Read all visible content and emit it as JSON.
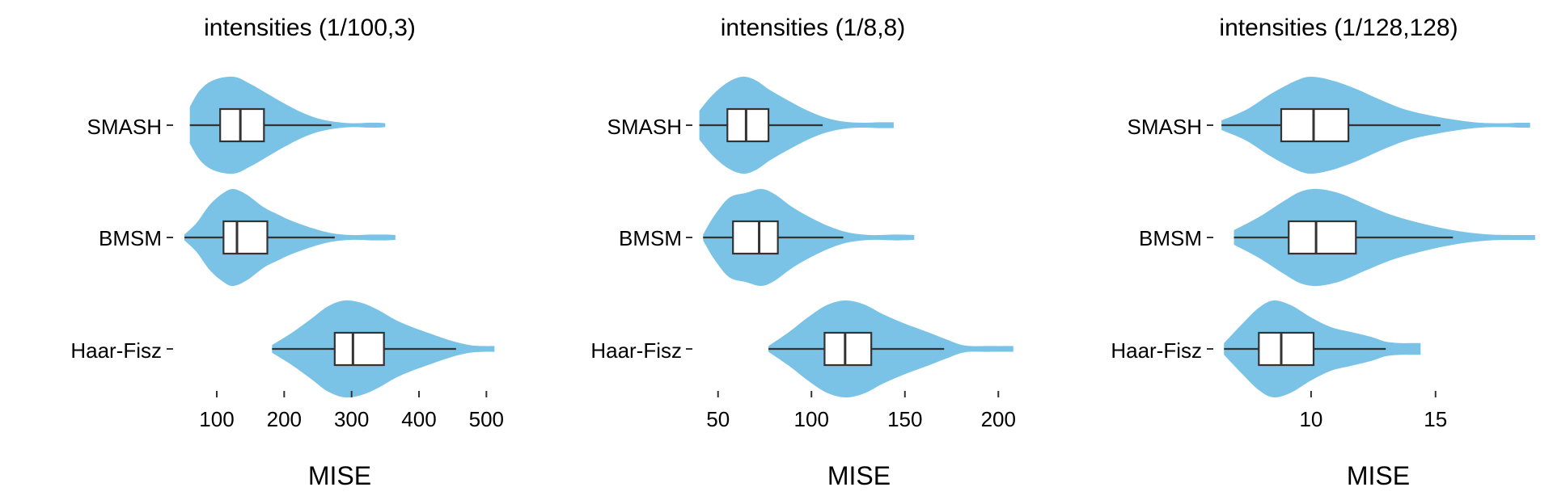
{
  "colors": {
    "violin_fill": "#7AC3E6",
    "box_stroke": "#333333",
    "box_fill": "#FFFFFF"
  },
  "chart_data": [
    {
      "type": "violin",
      "title": "intensities (1/100,3)",
      "xlabel": "MISE",
      "ylabel": "",
      "categories": [
        "SMASH",
        "BMSM",
        "Haar-Fisz"
      ],
      "xlim": [
        40,
        520
      ],
      "xticks": [
        100,
        200,
        300,
        400,
        500
      ],
      "grid": false,
      "series": [
        {
          "category": "SMASH",
          "whisker_low": 60,
          "q1": 105,
          "median": 135,
          "q3": 170,
          "whisker_high": 270,
          "violin_max": 350,
          "density": [
            [
              60,
              0.38
            ],
            [
              75,
              0.72
            ],
            [
              95,
              0.93
            ],
            [
              125,
              1.0
            ],
            [
              150,
              0.85
            ],
            [
              175,
              0.65
            ],
            [
              200,
              0.45
            ],
            [
              225,
              0.27
            ],
            [
              250,
              0.14
            ],
            [
              275,
              0.07
            ],
            [
              300,
              0.04
            ],
            [
              325,
              0.05
            ],
            [
              340,
              0.05
            ],
            [
              350,
              0.04
            ]
          ]
        },
        {
          "category": "BMSM",
          "whisker_low": 52,
          "q1": 110,
          "median": 130,
          "q3": 175,
          "whisker_high": 275,
          "violin_max": 365,
          "density": [
            [
              52,
              0.06
            ],
            [
              70,
              0.3
            ],
            [
              90,
              0.68
            ],
            [
              110,
              0.92
            ],
            [
              125,
              1.0
            ],
            [
              145,
              0.88
            ],
            [
              170,
              0.62
            ],
            [
              190,
              0.48
            ],
            [
              210,
              0.35
            ],
            [
              240,
              0.2
            ],
            [
              270,
              0.09
            ],
            [
              300,
              0.05
            ],
            [
              330,
              0.06
            ],
            [
              350,
              0.06
            ],
            [
              365,
              0.05
            ]
          ]
        },
        {
          "category": "Haar-Fisz",
          "whisker_low": 182,
          "q1": 275,
          "median": 302,
          "q3": 348,
          "whisker_high": 455,
          "violin_max": 512,
          "density": [
            [
              182,
              0.08
            ],
            [
              210,
              0.32
            ],
            [
              240,
              0.62
            ],
            [
              265,
              0.88
            ],
            [
              290,
              1.0
            ],
            [
              315,
              0.95
            ],
            [
              340,
              0.8
            ],
            [
              365,
              0.6
            ],
            [
              390,
              0.45
            ],
            [
              420,
              0.3
            ],
            [
              450,
              0.16
            ],
            [
              475,
              0.08
            ],
            [
              495,
              0.06
            ],
            [
              512,
              0.06
            ]
          ]
        }
      ]
    },
    {
      "type": "violin",
      "title": "intensities (1/8,8)",
      "xlabel": "MISE",
      "ylabel": "",
      "categories": [
        "SMASH",
        "BMSM",
        "Haar-Fisz"
      ],
      "xlim": [
        38,
        212
      ],
      "xticks": [
        50,
        100,
        150,
        200
      ],
      "grid": false,
      "series": [
        {
          "category": "SMASH",
          "whisker_low": 40,
          "q1": 55,
          "median": 65,
          "q3": 77,
          "whisker_high": 106,
          "violin_max": 144,
          "density": [
            [
              40,
              0.3
            ],
            [
              47,
              0.62
            ],
            [
              55,
              0.88
            ],
            [
              63,
              1.0
            ],
            [
              70,
              0.93
            ],
            [
              78,
              0.72
            ],
            [
              88,
              0.5
            ],
            [
              98,
              0.3
            ],
            [
              108,
              0.15
            ],
            [
              118,
              0.07
            ],
            [
              128,
              0.05
            ],
            [
              136,
              0.06
            ],
            [
              144,
              0.06
            ]
          ]
        },
        {
          "category": "BMSM",
          "whisker_low": 42,
          "q1": 58,
          "median": 72,
          "q3": 82,
          "whisker_high": 117,
          "violin_max": 155,
          "density": [
            [
              42,
              0.06
            ],
            [
              48,
              0.45
            ],
            [
              56,
              0.82
            ],
            [
              65,
              0.92
            ],
            [
              73,
              1.0
            ],
            [
              80,
              0.9
            ],
            [
              90,
              0.62
            ],
            [
              100,
              0.4
            ],
            [
              110,
              0.22
            ],
            [
              120,
              0.1
            ],
            [
              132,
              0.05
            ],
            [
              145,
              0.06
            ],
            [
              155,
              0.05
            ]
          ]
        },
        {
          "category": "Haar-Fisz",
          "whisker_low": 77,
          "q1": 107,
          "median": 118,
          "q3": 132,
          "whisker_high": 171,
          "violin_max": 208,
          "density": [
            [
              77,
              0.06
            ],
            [
              88,
              0.35
            ],
            [
              98,
              0.65
            ],
            [
              108,
              0.9
            ],
            [
              118,
              1.0
            ],
            [
              128,
              0.92
            ],
            [
              138,
              0.72
            ],
            [
              150,
              0.52
            ],
            [
              162,
              0.35
            ],
            [
              172,
              0.2
            ],
            [
              182,
              0.07
            ],
            [
              195,
              0.06
            ],
            [
              208,
              0.06
            ]
          ]
        }
      ]
    },
    {
      "type": "violin",
      "title": "intensities (1/128,128)",
      "xlabel": "MISE",
      "ylabel": "",
      "categories": [
        "SMASH",
        "BMSM",
        "Haar-Fisz"
      ],
      "xlim": [
        6.2,
        19.2
      ],
      "xticks": [
        10,
        15
      ],
      "grid": false,
      "series": [
        {
          "category": "SMASH",
          "whisker_low": 6.4,
          "q1": 8.8,
          "median": 10.1,
          "q3": 11.5,
          "whisker_high": 15.2,
          "violin_max": 18.8,
          "density": [
            [
              6.4,
              0.1
            ],
            [
              7.4,
              0.32
            ],
            [
              8.4,
              0.65
            ],
            [
              9.4,
              0.92
            ],
            [
              10.0,
              1.0
            ],
            [
              10.8,
              0.93
            ],
            [
              11.8,
              0.75
            ],
            [
              12.8,
              0.52
            ],
            [
              13.8,
              0.32
            ],
            [
              14.8,
              0.2
            ],
            [
              15.8,
              0.11
            ],
            [
              16.8,
              0.05
            ],
            [
              17.8,
              0.04
            ],
            [
              18.3,
              0.05
            ],
            [
              18.8,
              0.05
            ]
          ]
        },
        {
          "category": "BMSM",
          "whisker_low": 6.9,
          "q1": 9.1,
          "median": 10.2,
          "q3": 11.8,
          "whisker_high": 15.7,
          "violin_max": 19.0,
          "density": [
            [
              6.9,
              0.15
            ],
            [
              7.9,
              0.42
            ],
            [
              8.9,
              0.75
            ],
            [
              9.6,
              0.95
            ],
            [
              10.3,
              1.0
            ],
            [
              11.2,
              0.9
            ],
            [
              12.2,
              0.68
            ],
            [
              13.2,
              0.47
            ],
            [
              14.2,
              0.32
            ],
            [
              15.2,
              0.2
            ],
            [
              16.2,
              0.11
            ],
            [
              17.2,
              0.06
            ],
            [
              18.2,
              0.05
            ],
            [
              19.0,
              0.05
            ]
          ]
        },
        {
          "category": "Haar-Fisz",
          "whisker_low": 6.5,
          "q1": 7.9,
          "median": 8.8,
          "q3": 10.1,
          "whisker_high": 13.0,
          "violin_max": 14.4,
          "density": [
            [
              6.5,
              0.12
            ],
            [
              7.2,
              0.5
            ],
            [
              7.9,
              0.85
            ],
            [
              8.5,
              1.0
            ],
            [
              9.2,
              0.9
            ],
            [
              10.0,
              0.65
            ],
            [
              10.8,
              0.45
            ],
            [
              11.6,
              0.35
            ],
            [
              12.4,
              0.25
            ],
            [
              13.0,
              0.15
            ],
            [
              13.6,
              0.12
            ],
            [
              14.0,
              0.12
            ],
            [
              14.4,
              0.12
            ]
          ]
        }
      ]
    }
  ]
}
